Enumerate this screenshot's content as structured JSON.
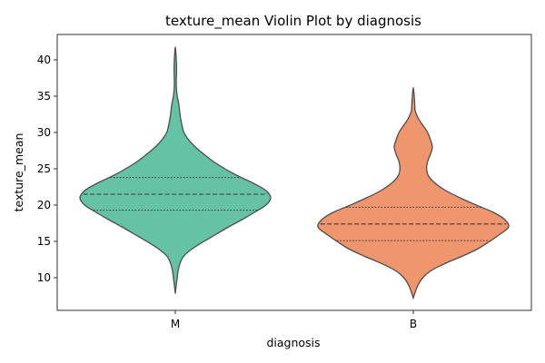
{
  "chart_data": {
    "type": "violin",
    "title": "texture_mean Violin Plot by diagnosis",
    "xlabel": "diagnosis",
    "ylabel": "texture_mean",
    "ylim": [
      5.5,
      43.5
    ],
    "yticks": [
      10,
      15,
      20,
      25,
      30,
      35,
      40
    ],
    "grid": false,
    "categories": [
      "M",
      "B"
    ],
    "series": [
      {
        "category": "M",
        "color": "#66c2a5",
        "y_min": 7.8,
        "y_max": 41.8,
        "quartiles": {
          "q1": 19.3,
          "median": 21.5,
          "q3": 23.8
        },
        "density_profile": [
          [
            7.8,
            0.0
          ],
          [
            9.0,
            0.01
          ],
          [
            10.0,
            0.02
          ],
          [
            11.0,
            0.03
          ],
          [
            12.0,
            0.05
          ],
          [
            13.0,
            0.09
          ],
          [
            14.0,
            0.18
          ],
          [
            15.0,
            0.3
          ],
          [
            16.0,
            0.43
          ],
          [
            17.0,
            0.56
          ],
          [
            18.0,
            0.7
          ],
          [
            19.0,
            0.83
          ],
          [
            20.0,
            0.95
          ],
          [
            21.0,
            1.0
          ],
          [
            22.0,
            0.95
          ],
          [
            23.0,
            0.82
          ],
          [
            24.0,
            0.66
          ],
          [
            25.0,
            0.52
          ],
          [
            26.0,
            0.4
          ],
          [
            27.0,
            0.3
          ],
          [
            28.0,
            0.21
          ],
          [
            29.0,
            0.14
          ],
          [
            30.0,
            0.09
          ],
          [
            31.0,
            0.07
          ],
          [
            32.0,
            0.055
          ],
          [
            33.0,
            0.045
          ],
          [
            34.0,
            0.035
          ],
          [
            35.0,
            0.02
          ],
          [
            36.0,
            0.012
          ],
          [
            37.0,
            0.01
          ],
          [
            38.0,
            0.012
          ],
          [
            39.0,
            0.013
          ],
          [
            40.0,
            0.01
          ],
          [
            41.0,
            0.006
          ],
          [
            41.8,
            0.0
          ]
        ]
      },
      {
        "category": "B",
        "color": "#f0966f",
        "y_min": 7.2,
        "y_max": 36.2,
        "quartiles": {
          "q1": 15.1,
          "median": 17.4,
          "q3": 19.7
        },
        "density_profile": [
          [
            7.2,
            0.0
          ],
          [
            8.0,
            0.02
          ],
          [
            9.0,
            0.05
          ],
          [
            10.0,
            0.1
          ],
          [
            11.0,
            0.19
          ],
          [
            12.0,
            0.34
          ],
          [
            13.0,
            0.52
          ],
          [
            14.0,
            0.68
          ],
          [
            15.0,
            0.8
          ],
          [
            16.0,
            0.91
          ],
          [
            17.0,
            1.0
          ],
          [
            18.0,
            0.96
          ],
          [
            19.0,
            0.84
          ],
          [
            20.0,
            0.66
          ],
          [
            21.0,
            0.49
          ],
          [
            22.0,
            0.34
          ],
          [
            23.0,
            0.23
          ],
          [
            24.0,
            0.16
          ],
          [
            25.0,
            0.14
          ],
          [
            26.0,
            0.15
          ],
          [
            27.0,
            0.18
          ],
          [
            28.0,
            0.2
          ],
          [
            29.0,
            0.18
          ],
          [
            30.0,
            0.15
          ],
          [
            31.0,
            0.1
          ],
          [
            32.0,
            0.05
          ],
          [
            33.0,
            0.02
          ],
          [
            34.0,
            0.015
          ],
          [
            35.0,
            0.01
          ],
          [
            36.2,
            0.0
          ]
        ]
      }
    ]
  }
}
